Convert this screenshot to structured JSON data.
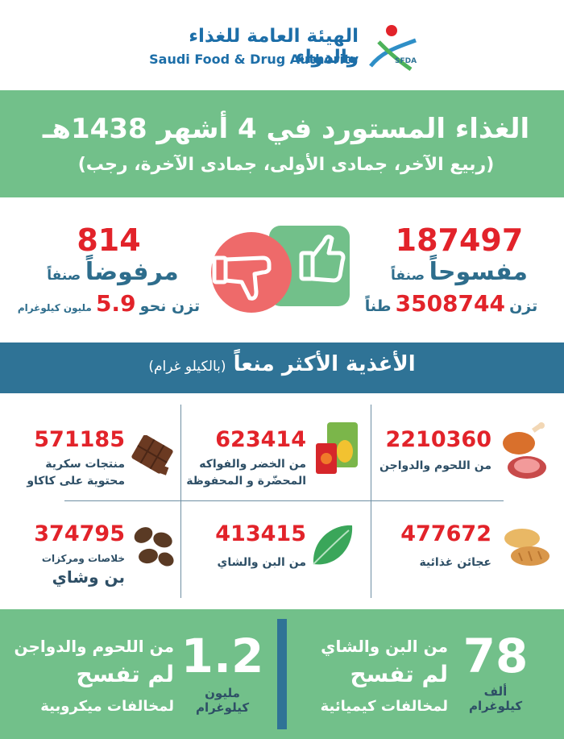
{
  "header": {
    "org_name_ar": "الهيئة العامة للغذاء والدواء",
    "org_name_en": "Saudi Food & Drug Authority",
    "logo_abbrev": "SFDA"
  },
  "title": {
    "line1": "الغذاء المستورد في 4 أشهر 1438هـ",
    "line2": "(ربيع الآخر، جمادى الأولى، جمادى الآخرة، رجب)"
  },
  "stats": {
    "approved": {
      "count": "187497",
      "label_prefix": "صنفاً",
      "label_main": "مفسوحاً",
      "weight_prefix": "تزن",
      "weight_value": "3508744",
      "weight_unit": "طناً"
    },
    "rejected": {
      "count": "814",
      "label_prefix": "صنفاً",
      "label_main": "مرفوضاً",
      "weight_prefix": "تزن نحو",
      "weight_value": "5.9",
      "weight_unit": "مليون كيلوغرام"
    }
  },
  "banned_title": {
    "main": "الأغذية الأكثر منعاً",
    "sub": "(بالكيلو غرام)"
  },
  "banned": [
    {
      "value": "2210360",
      "label1": "من اللحوم والدواجن",
      "label2": "",
      "icon": "meat-icon"
    },
    {
      "value": "623414",
      "label1": "من الخضر والفواكه",
      "label2": "المحضّرة و المحفوظة",
      "icon": "canned-fruit-icon"
    },
    {
      "value": "571185",
      "label1": "منتجات سكرية",
      "label2": "محتوية على كاكاو",
      "icon": "chocolate-icon"
    },
    {
      "value": "477672",
      "label1": "عجائن غذائية",
      "label2": "",
      "icon": "bread-icon"
    },
    {
      "value": "413415",
      "label1": "من البن والشاي",
      "label2": "",
      "icon": "leaf-icon"
    },
    {
      "value": "374795",
      "label1": "خلاصات ومركزات",
      "label2": "بن وشاي",
      "icon": "coffee-beans-icon"
    }
  ],
  "footer": {
    "right": {
      "big": "78",
      "unit1": "ألف",
      "unit2": "كيلوغرام",
      "line1": "من البن والشاي",
      "line2": "لم تفسح",
      "line3": "لمخالفات كيميائية"
    },
    "left": {
      "big": "1.2",
      "unit1": "مليون",
      "unit2": "كيلوغرام",
      "line1": "من اللحوم والدواجن",
      "line2": "لم تفسح",
      "line3": "لمخالفات ميكروبية"
    }
  },
  "colors": {
    "green": "#72c08a",
    "blue": "#2f7396",
    "red": "#e2232a",
    "thumb_down_bg": "#ee6a6a",
    "thumb_up_bg": "#72c08a"
  }
}
